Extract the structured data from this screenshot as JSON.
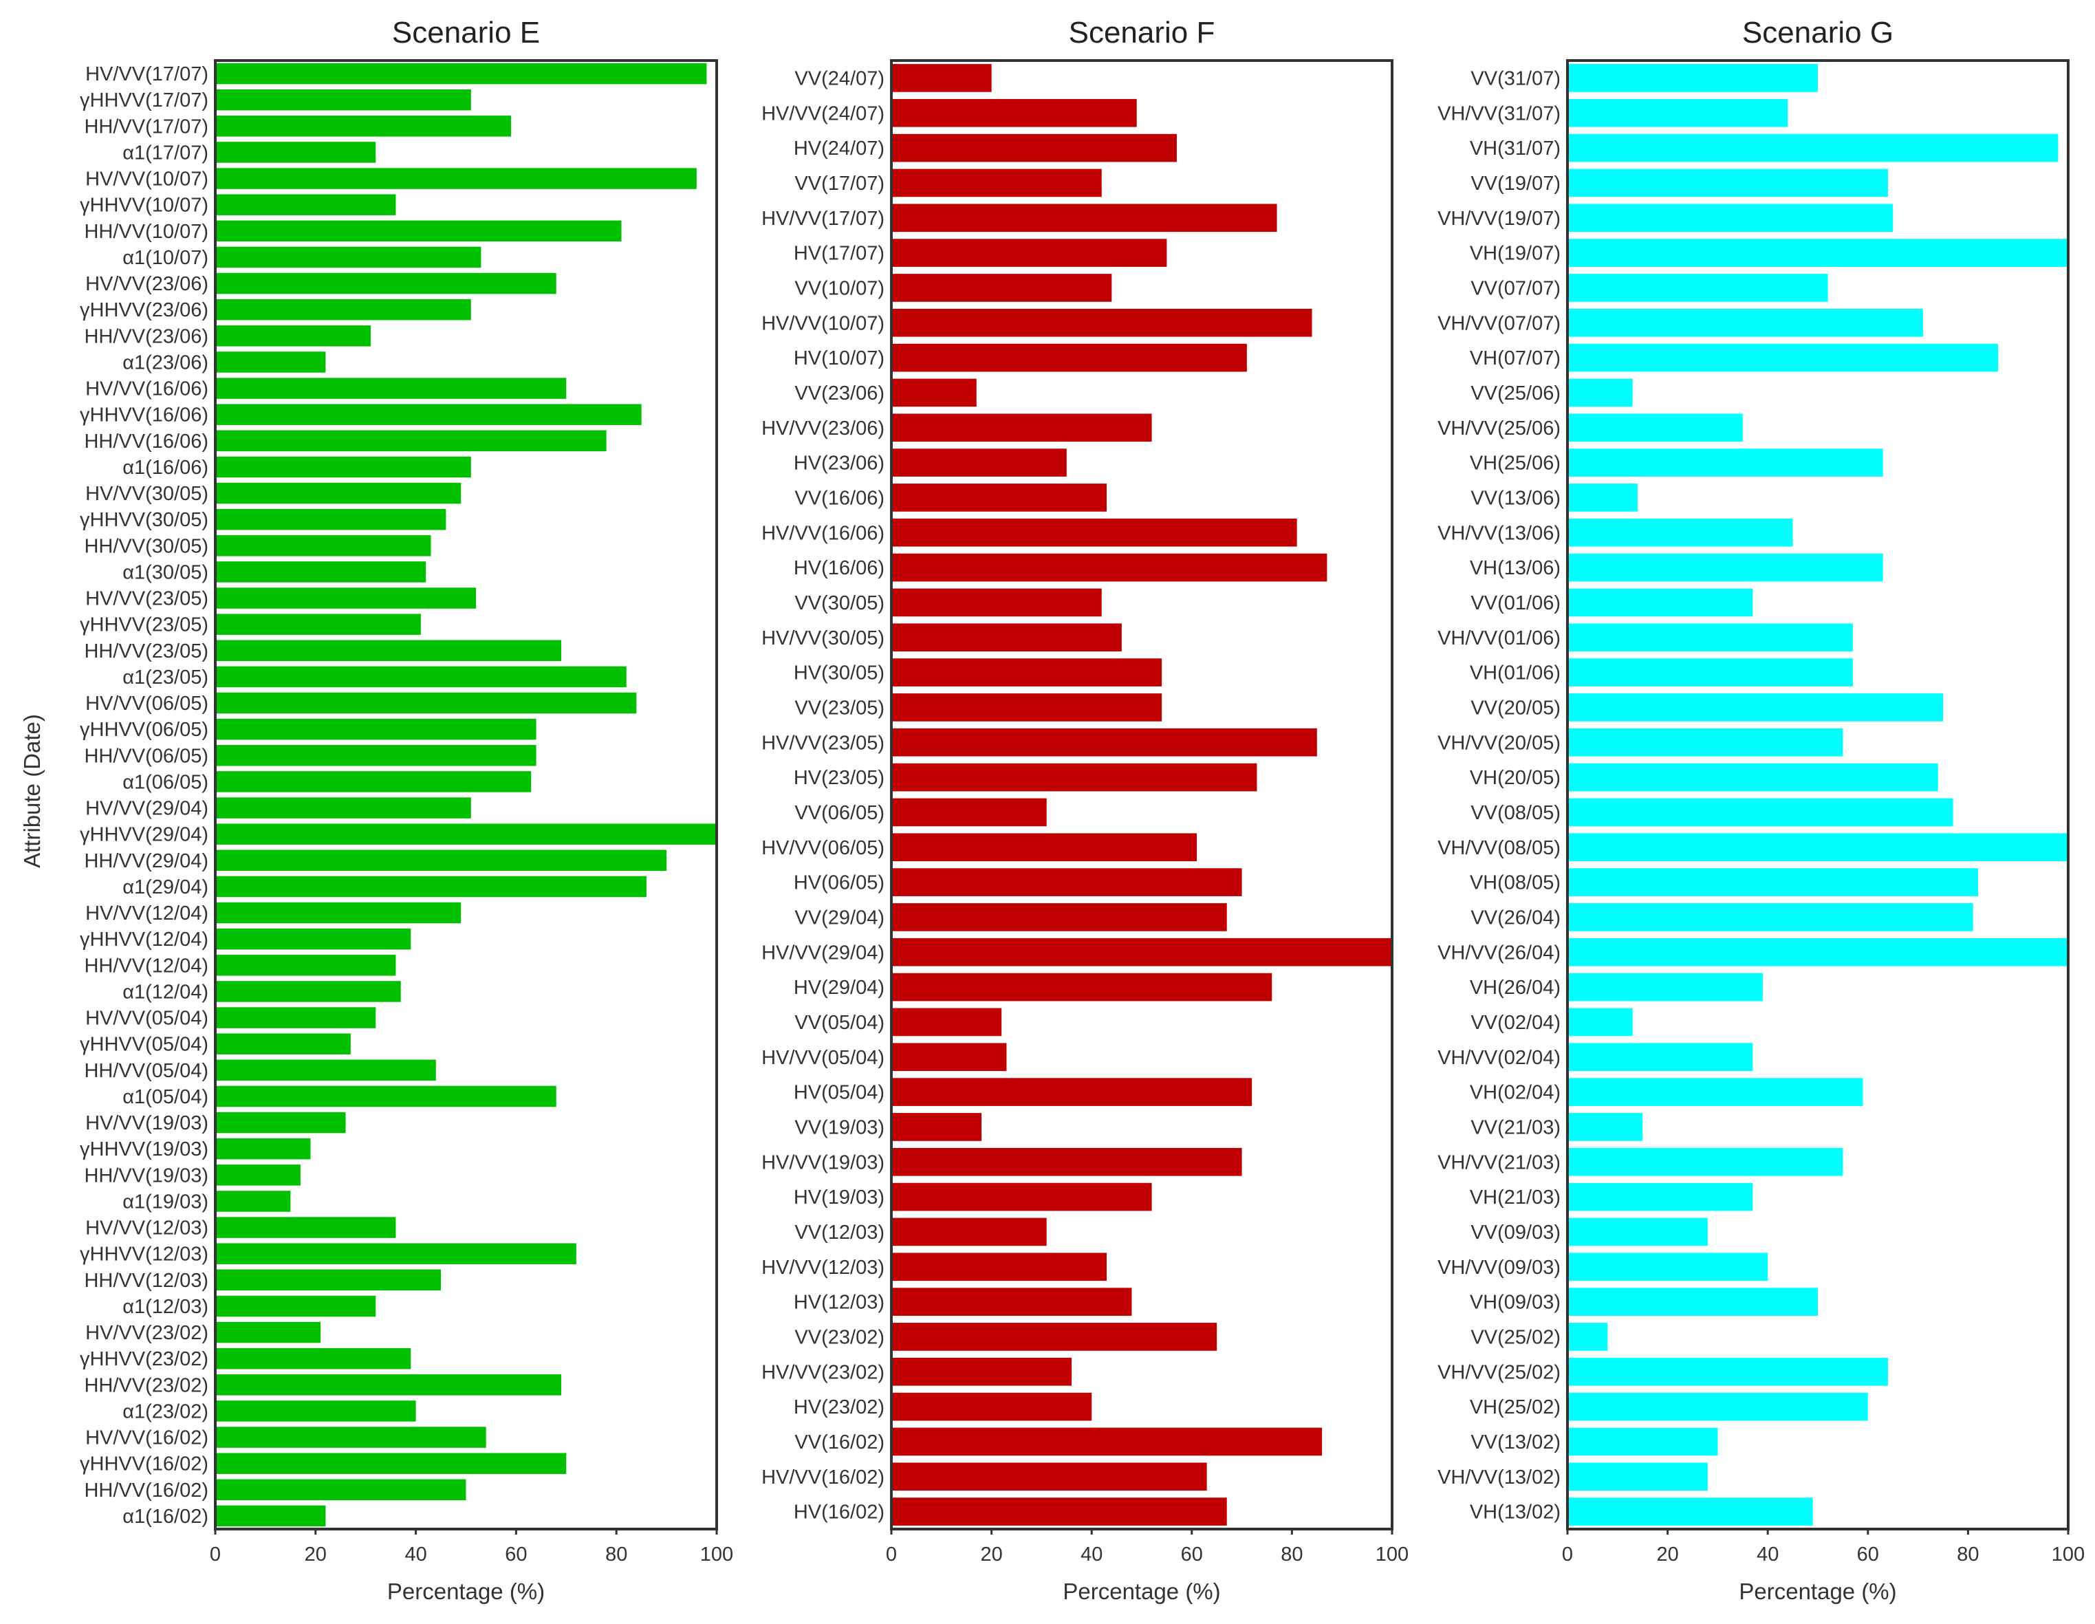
{
  "figure": {
    "ylabel": "Attribute (Date)"
  },
  "chart_data": [
    {
      "type": "bar",
      "orientation": "horizontal",
      "title": "Scenario E",
      "xlabel": "Percentage (%)",
      "ylabel": "Attribute (Date)",
      "xlim": [
        0,
        100
      ],
      "xticks": [
        "0",
        "20",
        "40",
        "60",
        "80",
        "100"
      ],
      "color": "#00c000",
      "categories": [
        "HV/VV(17/07)",
        "γHHVV(17/07)",
        "HH/VV(17/07)",
        "α1(17/07)",
        "HV/VV(10/07)",
        "γHHVV(10/07)",
        "HH/VV(10/07)",
        "α1(10/07)",
        "HV/VV(23/06)",
        "γHHVV(23/06)",
        "HH/VV(23/06)",
        "α1(23/06)",
        "HV/VV(16/06)",
        "γHHVV(16/06)",
        "HH/VV(16/06)",
        "α1(16/06)",
        "HV/VV(30/05)",
        "γHHVV(30/05)",
        "HH/VV(30/05)",
        "α1(30/05)",
        "HV/VV(23/05)",
        "γHHVV(23/05)",
        "HH/VV(23/05)",
        "α1(23/05)",
        "HV/VV(06/05)",
        "γHHVV(06/05)",
        "HH/VV(06/05)",
        "α1(06/05)",
        "HV/VV(29/04)",
        "γHHVV(29/04)",
        "HH/VV(29/04)",
        "α1(29/04)",
        "HV/VV(12/04)",
        "γHHVV(12/04)",
        "HH/VV(12/04)",
        "α1(12/04)",
        "HV/VV(05/04)",
        "γHHVV(05/04)",
        "HH/VV(05/04)",
        "α1(05/04)",
        "HV/VV(19/03)",
        "γHHVV(19/03)",
        "HH/VV(19/03)",
        "α1(19/03)",
        "HV/VV(12/03)",
        "γHHVV(12/03)",
        "HH/VV(12/03)",
        "α1(12/03)",
        "HV/VV(23/02)",
        "γHHVV(23/02)",
        "HH/VV(23/02)",
        "α1(23/02)",
        "HV/VV(16/02)",
        "γHHVV(16/02)",
        "HH/VV(16/02)",
        "α1(16/02)"
      ],
      "values": [
        98,
        51,
        59,
        32,
        96,
        36,
        81,
        53,
        68,
        51,
        31,
        22,
        70,
        85,
        78,
        51,
        49,
        46,
        43,
        42,
        52,
        41,
        69,
        82,
        84,
        64,
        64,
        63,
        51,
        100,
        90,
        86,
        49,
        39,
        36,
        37,
        32,
        27,
        44,
        68,
        26,
        19,
        17,
        15,
        36,
        72,
        45,
        32,
        21,
        39,
        69,
        40,
        54,
        70,
        50,
        22
      ]
    },
    {
      "type": "bar",
      "orientation": "horizontal",
      "title": "Scenario F",
      "xlabel": "Percentage (%)",
      "xlim": [
        0,
        100
      ],
      "xticks": [
        "0",
        "20",
        "40",
        "60",
        "80",
        "100"
      ],
      "color": "#c00000",
      "categories": [
        "VV(24/07)",
        "HV/VV(24/07)",
        "HV(24/07)",
        "VV(17/07)",
        "HV/VV(17/07)",
        "HV(17/07)",
        "VV(10/07)",
        "HV/VV(10/07)",
        "HV(10/07)",
        "VV(23/06)",
        "HV/VV(23/06)",
        "HV(23/06)",
        "VV(16/06)",
        "HV/VV(16/06)",
        "HV(16/06)",
        "VV(30/05)",
        "HV/VV(30/05)",
        "HV(30/05)",
        "VV(23/05)",
        "HV/VV(23/05)",
        "HV(23/05)",
        "VV(06/05)",
        "HV/VV(06/05)",
        "HV(06/05)",
        "VV(29/04)",
        "HV/VV(29/04)",
        "HV(29/04)",
        "VV(05/04)",
        "HV/VV(05/04)",
        "HV(05/04)",
        "VV(19/03)",
        "HV/VV(19/03)",
        "HV(19/03)",
        "VV(12/03)",
        "HV/VV(12/03)",
        "HV(12/03)",
        "VV(23/02)",
        "HV/VV(23/02)",
        "HV(23/02)",
        "VV(16/02)",
        "HV/VV(16/02)",
        "HV(16/02)"
      ],
      "values": [
        20,
        49,
        57,
        42,
        77,
        55,
        44,
        84,
        71,
        17,
        52,
        35,
        43,
        81,
        87,
        42,
        46,
        54,
        54,
        85,
        73,
        31,
        61,
        70,
        67,
        100,
        76,
        22,
        23,
        72,
        18,
        70,
        52,
        31,
        43,
        48,
        65,
        36,
        40,
        86,
        63,
        67
      ]
    },
    {
      "type": "bar",
      "orientation": "horizontal",
      "title": "Scenario G",
      "xlabel": "Percentage (%)",
      "xlim": [
        0,
        100
      ],
      "xticks": [
        "0",
        "20",
        "40",
        "60",
        "80",
        "100"
      ],
      "color": "#00ffff",
      "categories": [
        "VV(31/07)",
        "VH/VV(31/07)",
        "VH(31/07)",
        "VV(19/07)",
        "VH/VV(19/07)",
        "VH(19/07)",
        "VV(07/07)",
        "VH/VV(07/07)",
        "VH(07/07)",
        "VV(25/06)",
        "VH/VV(25/06)",
        "VH(25/06)",
        "VV(13/06)",
        "VH/VV(13/06)",
        "VH(13/06)",
        "VV(01/06)",
        "VH/VV(01/06)",
        "VH(01/06)",
        "VV(20/05)",
        "VH/VV(20/05)",
        "VH(20/05)",
        "VV(08/05)",
        "VH/VV(08/05)",
        "VH(08/05)",
        "VV(26/04)",
        "VH/VV(26/04)",
        "VH(26/04)",
        "VV(02/04)",
        "VH/VV(02/04)",
        "VH(02/04)",
        "VV(21/03)",
        "VH/VV(21/03)",
        "VH(21/03)",
        "VV(09/03)",
        "VH/VV(09/03)",
        "VH(09/03)",
        "VV(25/02)",
        "VH/VV(25/02)",
        "VH(25/02)",
        "VV(13/02)",
        "VH/VV(13/02)",
        "VH(13/02)"
      ],
      "values": [
        50,
        44,
        98,
        64,
        65,
        100,
        52,
        71,
        86,
        13,
        35,
        63,
        14,
        45,
        63,
        37,
        57,
        57,
        75,
        55,
        74,
        77,
        100,
        82,
        81,
        100,
        39,
        13,
        37,
        59,
        15,
        55,
        37,
        28,
        40,
        50,
        8,
        64,
        60,
        30,
        28,
        49
      ]
    }
  ]
}
